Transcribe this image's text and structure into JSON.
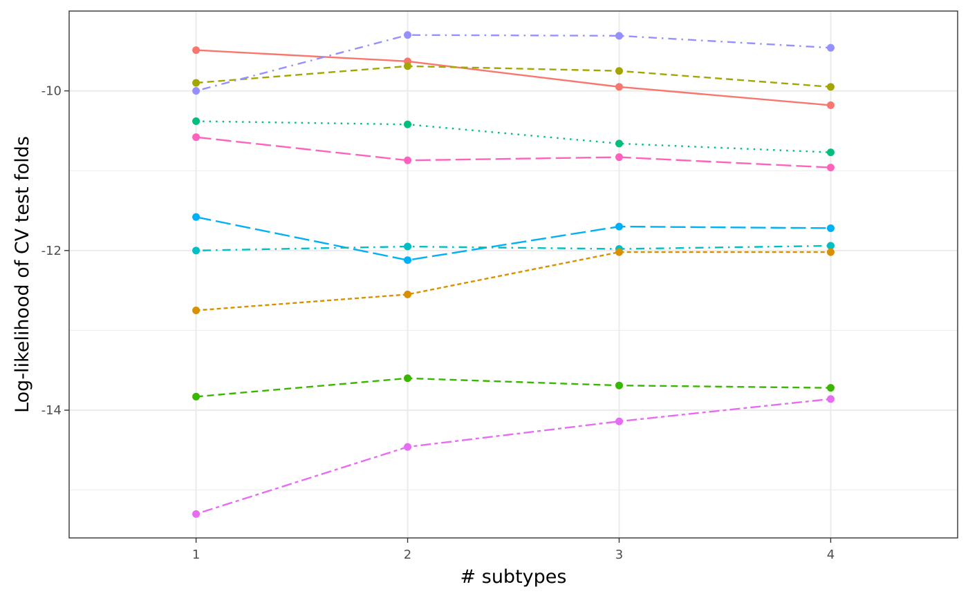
{
  "chart_data": {
    "type": "line",
    "title": "",
    "xlabel": "# subtypes",
    "ylabel": "Log-likelihood of CV test folds",
    "x": [
      1,
      2,
      3,
      4
    ],
    "xlim": [
      0.4,
      4.6
    ],
    "ylim": [
      -15.6,
      -9.0
    ],
    "x_ticks": [
      1,
      2,
      3,
      4
    ],
    "x_tick_labels": [
      "1",
      "2",
      "3",
      "4"
    ],
    "y_ticks": [
      -14,
      -12,
      -10
    ],
    "y_tick_labels": [
      "-14",
      "-12",
      "-10"
    ],
    "y_minor_gridlines": [
      -15,
      -13,
      -11,
      -9
    ],
    "grid": true,
    "legend": "none",
    "series": [
      {
        "color": "#F8766D",
        "dash": "solid",
        "values": [
          -9.49,
          -9.63,
          -9.95,
          -10.18
        ]
      },
      {
        "color": "#A3A500",
        "dash": "dashed",
        "values": [
          -9.9,
          -9.69,
          -9.75,
          -9.95
        ]
      },
      {
        "color": "#9590FF",
        "dash": "dotdash",
        "values": [
          -10.0,
          -9.3,
          -9.31,
          -9.46
        ]
      },
      {
        "color": "#00BF7D",
        "dash": "dotted",
        "values": [
          -10.38,
          -10.42,
          -10.66,
          -10.77
        ]
      },
      {
        "color": "#FF62BC",
        "dash": "longdash",
        "values": [
          -10.58,
          -10.87,
          -10.83,
          -10.96
        ]
      },
      {
        "color": "#00B0F6",
        "dash": "longdash",
        "values": [
          -11.58,
          -12.12,
          -11.7,
          -11.72
        ]
      },
      {
        "color": "#00BFC4",
        "dash": "dotdash",
        "values": [
          -12.0,
          -11.95,
          -11.98,
          -11.94
        ]
      },
      {
        "color": "#D89000",
        "dash": "dashed-short",
        "values": [
          -12.75,
          -12.55,
          -12.02,
          -12.02
        ]
      },
      {
        "color": "#39B600",
        "dash": "dashed",
        "values": [
          -13.83,
          -13.6,
          -13.69,
          -13.72
        ]
      },
      {
        "color": "#E76BF3",
        "dash": "twodash",
        "values": [
          -15.3,
          -14.46,
          -14.14,
          -13.86
        ]
      }
    ]
  }
}
